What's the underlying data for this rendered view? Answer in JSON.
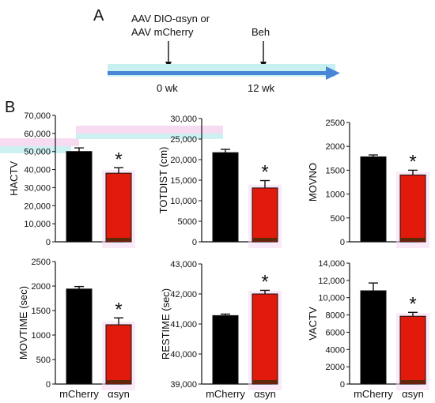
{
  "panel_labels": {
    "timeline": "A",
    "behavior": "B"
  },
  "timeline": {
    "injection_label_1": "AAV DIO-αsyn or",
    "injection_label_2": "AAV mCherry",
    "behavior_label": "Beh",
    "time_start": "0 wk",
    "time_end": "12 wk",
    "arrow_color": "#4a86d8",
    "highlight_color": "#c8f0f0"
  },
  "colors": {
    "mCherry": "#000000",
    "asyn": "#e11a0c",
    "asyn_base": "#5a2a0a",
    "highlight_pink": "#f6d8f0",
    "highlight_cyan": "#c8f0f0"
  },
  "significance_marker": "*",
  "category_labels": [
    "mCherry",
    "αsyn"
  ],
  "chart_data": [
    {
      "type": "bar",
      "ylabel": "HACTV",
      "categories": [
        "mCherry",
        "αsyn"
      ],
      "values": [
        50000,
        38000
      ],
      "errors": [
        2000,
        3000
      ],
      "ylim": [
        0,
        70000
      ],
      "yticks": [
        0,
        10000,
        20000,
        30000,
        40000,
        50000,
        60000,
        70000
      ],
      "ytick_labels": [
        "0",
        "10,000",
        "20,000",
        "30,000",
        "40,000",
        "50,000",
        "60,000",
        "70,000"
      ],
      "significant": true,
      "show_category_labels": false
    },
    {
      "type": "bar",
      "ylabel": "TOTDIST (cm)",
      "categories": [
        "mCherry",
        "αsyn"
      ],
      "values": [
        21700,
        13100
      ],
      "errors": [
        800,
        1800
      ],
      "ylim": [
        0,
        30000
      ],
      "yticks": [
        0,
        5000,
        10000,
        15000,
        20000,
        25000,
        30000
      ],
      "ytick_labels": [
        "0",
        "5000",
        "10,000",
        "15,000",
        "20,000",
        "25,000",
        "30,000"
      ],
      "significant": true,
      "show_category_labels": false
    },
    {
      "type": "bar",
      "ylabel": "MOVNO",
      "categories": [
        "mCherry",
        "αsyn"
      ],
      "values": [
        1780,
        1400
      ],
      "errors": [
        40,
        100
      ],
      "ylim": [
        0,
        2500
      ],
      "yticks": [
        0,
        500,
        1000,
        1500,
        2000,
        2500
      ],
      "ytick_labels": [
        "0",
        "500",
        "1000",
        "1500",
        "2000",
        "2500"
      ],
      "significant": true,
      "show_category_labels": false
    },
    {
      "type": "bar",
      "ylabel": "MOVTIME (sec)",
      "categories": [
        "mCherry",
        "αsyn"
      ],
      "values": [
        1940,
        1210
      ],
      "errors": [
        50,
        140
      ],
      "ylim": [
        0,
        2500
      ],
      "yticks": [
        0,
        500,
        1000,
        1500,
        2000,
        2500
      ],
      "ytick_labels": [
        "0",
        "500",
        "1000",
        "1500",
        "2000",
        "2500"
      ],
      "significant": true,
      "show_category_labels": true
    },
    {
      "type": "bar",
      "ylabel": "RESTIME (sec)",
      "categories": [
        "mCherry",
        "αsyn"
      ],
      "values": [
        41280,
        42000
      ],
      "errors": [
        50,
        120
      ],
      "ylim": [
        39000,
        43000
      ],
      "yticks": [
        39000,
        40000,
        41000,
        42000,
        43000
      ],
      "ytick_labels": [
        "39,000",
        "40,000",
        "41,000",
        "42,000",
        "43,000"
      ],
      "significant": true,
      "show_category_labels": true
    },
    {
      "type": "bar",
      "ylabel": "VACTV",
      "categories": [
        "mCherry",
        "αsyn"
      ],
      "values": [
        10800,
        7850
      ],
      "errors": [
        900,
        450
      ],
      "ylim": [
        0,
        14000
      ],
      "yticks": [
        0,
        2000,
        4000,
        6000,
        8000,
        10000,
        12000,
        14000
      ],
      "ytick_labels": [
        "0",
        "2000",
        "4000",
        "6000",
        "8000",
        "10,000",
        "12,000",
        "14,000"
      ],
      "significant": true,
      "show_category_labels": true
    }
  ]
}
